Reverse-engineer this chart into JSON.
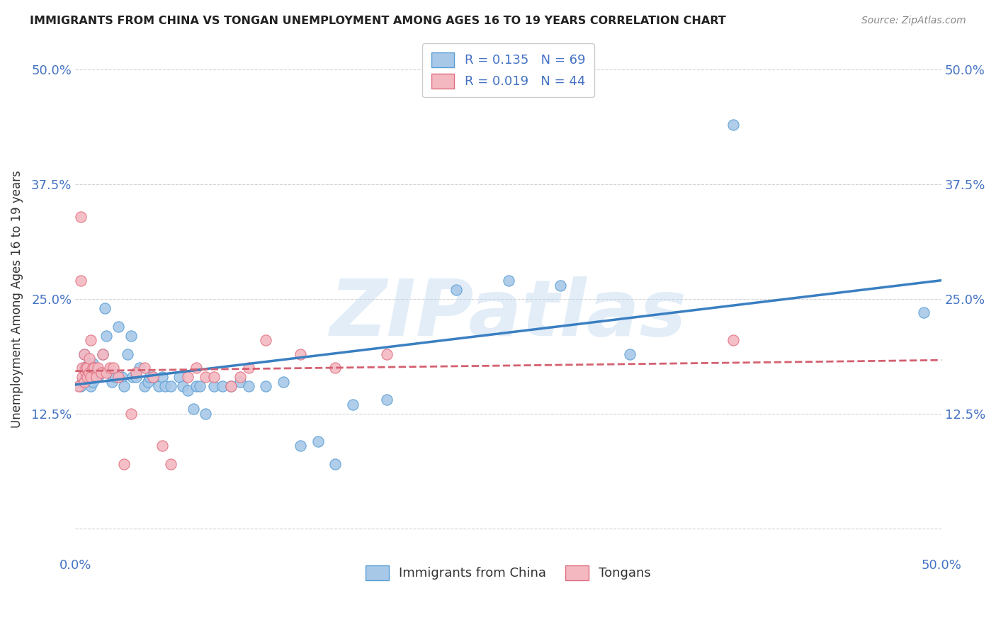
{
  "title": "IMMIGRANTS FROM CHINA VS TONGAN UNEMPLOYMENT AMONG AGES 16 TO 19 YEARS CORRELATION CHART",
  "source": "Source: ZipAtlas.com",
  "ylabel": "Unemployment Among Ages 16 to 19 years",
  "xlim": [
    0,
    0.5
  ],
  "ylim": [
    -0.03,
    0.53
  ],
  "china_color": "#a8c8e8",
  "china_edge_color": "#5a9fd4",
  "china_line_color": "#3a7fc1",
  "tongan_color": "#f4b8c1",
  "tongan_edge_color": "#e07080",
  "tongan_line_color": "#d46070",
  "china_R": 0.135,
  "china_N": 69,
  "tongan_R": 0.019,
  "tongan_N": 44,
  "legend_label_china": "Immigrants from China",
  "legend_label_tongan": "Tongans",
  "background_color": "#ffffff",
  "grid_color": "#d0d0d0",
  "text_color": "#4472c4",
  "title_color": "#222222",
  "source_color": "#888888",
  "watermark": "ZIPatlas",
  "china_x": [
    0.003,
    0.004,
    0.005,
    0.005,
    0.006,
    0.006,
    0.007,
    0.007,
    0.008,
    0.008,
    0.009,
    0.009,
    0.009,
    0.01,
    0.01,
    0.01,
    0.011,
    0.012,
    0.013,
    0.014,
    0.015,
    0.016,
    0.017,
    0.018,
    0.02,
    0.021,
    0.022,
    0.023,
    0.025,
    0.027,
    0.028,
    0.03,
    0.032,
    0.033,
    0.035,
    0.037,
    0.04,
    0.042,
    0.043,
    0.045,
    0.048,
    0.05,
    0.052,
    0.055,
    0.06,
    0.062,
    0.065,
    0.068,
    0.07,
    0.072,
    0.075,
    0.08,
    0.085,
    0.09,
    0.095,
    0.1,
    0.11,
    0.12,
    0.13,
    0.14,
    0.15,
    0.16,
    0.18,
    0.22,
    0.25,
    0.28,
    0.32,
    0.38,
    0.49
  ],
  "china_y": [
    0.155,
    0.16,
    0.19,
    0.175,
    0.175,
    0.165,
    0.175,
    0.165,
    0.18,
    0.17,
    0.17,
    0.16,
    0.155,
    0.18,
    0.165,
    0.16,
    0.175,
    0.17,
    0.165,
    0.17,
    0.17,
    0.19,
    0.24,
    0.21,
    0.17,
    0.16,
    0.17,
    0.165,
    0.22,
    0.165,
    0.155,
    0.19,
    0.21,
    0.165,
    0.165,
    0.175,
    0.155,
    0.16,
    0.165,
    0.165,
    0.155,
    0.165,
    0.155,
    0.155,
    0.165,
    0.155,
    0.15,
    0.13,
    0.155,
    0.155,
    0.125,
    0.155,
    0.155,
    0.155,
    0.16,
    0.155,
    0.155,
    0.16,
    0.09,
    0.095,
    0.07,
    0.135,
    0.14,
    0.26,
    0.27,
    0.265,
    0.19,
    0.44,
    0.235
  ],
  "tongan_x": [
    0.002,
    0.003,
    0.003,
    0.004,
    0.004,
    0.005,
    0.005,
    0.006,
    0.006,
    0.007,
    0.007,
    0.008,
    0.008,
    0.009,
    0.009,
    0.01,
    0.011,
    0.012,
    0.013,
    0.015,
    0.016,
    0.018,
    0.02,
    0.022,
    0.025,
    0.028,
    0.032,
    0.035,
    0.04,
    0.045,
    0.05,
    0.055,
    0.065,
    0.07,
    0.075,
    0.08,
    0.09,
    0.095,
    0.1,
    0.11,
    0.13,
    0.15,
    0.18,
    0.38
  ],
  "tongan_y": [
    0.155,
    0.34,
    0.27,
    0.175,
    0.165,
    0.19,
    0.16,
    0.17,
    0.175,
    0.175,
    0.165,
    0.17,
    0.185,
    0.165,
    0.205,
    0.175,
    0.175,
    0.165,
    0.175,
    0.17,
    0.19,
    0.17,
    0.175,
    0.175,
    0.165,
    0.07,
    0.125,
    0.17,
    0.175,
    0.165,
    0.09,
    0.07,
    0.165,
    0.175,
    0.165,
    0.165,
    0.155,
    0.165,
    0.175,
    0.205,
    0.19,
    0.175,
    0.19,
    0.205
  ]
}
